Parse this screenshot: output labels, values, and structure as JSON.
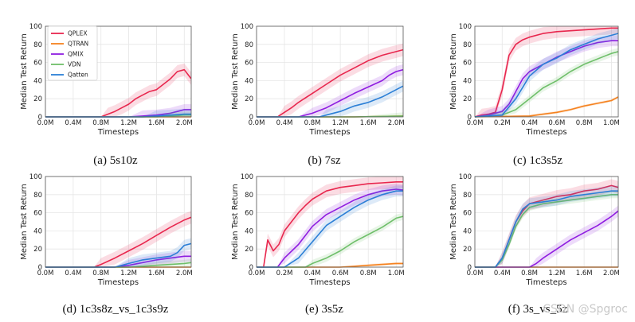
{
  "colors": {
    "QPLEX": "#e8274e",
    "QTRAN": "#f5821f",
    "QMIX": "#8f1de0",
    "VDN": "#6fbf6a",
    "Qatten": "#2b7fd6"
  },
  "legend": [
    "QPLEX",
    "QTRAN",
    "QMIX",
    "VDN",
    "Qatten"
  ],
  "watermark": "CSDN @Spgroc",
  "chart_data": [
    {
      "type": "line",
      "caption": "(a) 5s10z",
      "xlabel": "Timesteps",
      "ylabel": "Median Test Return",
      "xlim": [
        0,
        2.1
      ],
      "ylim": [
        0,
        100
      ],
      "xticks": [
        0,
        0.4,
        0.8,
        1.2,
        1.6,
        2.0
      ],
      "xtick_labels": [
        "0.0M",
        "0.4M",
        "0.8M",
        "1.2M",
        "1.6M",
        "2.0M"
      ],
      "yticks": [
        0,
        20,
        40,
        60,
        80,
        100
      ],
      "series": [
        {
          "name": "QPLEX",
          "x": [
            0,
            0.8,
            0.9,
            1.0,
            1.1,
            1.2,
            1.3,
            1.4,
            1.5,
            1.6,
            1.7,
            1.8,
            1.9,
            2.0,
            2.1
          ],
          "y": [
            0,
            0,
            3,
            6,
            10,
            14,
            20,
            24,
            28,
            30,
            36,
            42,
            50,
            52,
            42
          ]
        },
        {
          "name": "QTRAN",
          "x": [
            0,
            2.1
          ],
          "y": [
            0,
            0
          ]
        },
        {
          "name": "QMIX",
          "x": [
            0,
            1.2,
            1.4,
            1.6,
            1.8,
            1.9,
            2.0,
            2.1
          ],
          "y": [
            0,
            0,
            1,
            2,
            4,
            6,
            8,
            8
          ]
        },
        {
          "name": "VDN",
          "x": [
            0,
            1.6,
            1.8,
            2.0,
            2.1
          ],
          "y": [
            0,
            0,
            1,
            2,
            2
          ]
        },
        {
          "name": "Qatten",
          "x": [
            0,
            1.4,
            1.6,
            1.8,
            2.0,
            2.1
          ],
          "y": [
            0,
            0,
            1,
            2,
            3,
            3
          ]
        }
      ]
    },
    {
      "type": "line",
      "caption": "(b) 7sz",
      "xlabel": "Timesteps",
      "ylabel": "Median Test Return",
      "xlim": [
        0,
        2.1
      ],
      "ylim": [
        0,
        100
      ],
      "xticks": [
        0,
        0.4,
        0.8,
        1.2,
        1.6,
        2.0
      ],
      "xtick_labels": [
        "0.0M",
        "0.4M",
        "0.8M",
        "1.2M",
        "1.6M",
        "2.0M"
      ],
      "yticks": [
        0,
        20,
        40,
        60,
        80,
        100
      ],
      "series": [
        {
          "name": "QPLEX",
          "x": [
            0,
            0.3,
            0.4,
            0.5,
            0.6,
            0.8,
            1.0,
            1.2,
            1.4,
            1.6,
            1.8,
            2.0,
            2.1
          ],
          "y": [
            0,
            0,
            5,
            10,
            16,
            26,
            36,
            46,
            54,
            62,
            68,
            72,
            74
          ]
        },
        {
          "name": "QTRAN",
          "x": [
            0,
            1.4,
            2.1
          ],
          "y": [
            0,
            0,
            1
          ]
        },
        {
          "name": "QMIX",
          "x": [
            0,
            0.6,
            0.8,
            1.0,
            1.2,
            1.4,
            1.6,
            1.8,
            1.9,
            2.0,
            2.1
          ],
          "y": [
            0,
            0,
            4,
            10,
            18,
            26,
            33,
            40,
            46,
            50,
            52
          ]
        },
        {
          "name": "VDN",
          "x": [
            0,
            1.4,
            2.1
          ],
          "y": [
            0,
            0,
            1
          ]
        },
        {
          "name": "Qatten",
          "x": [
            0,
            0.9,
            1.0,
            1.2,
            1.4,
            1.6,
            1.8,
            2.0,
            2.1
          ],
          "y": [
            0,
            0,
            2,
            6,
            12,
            16,
            22,
            30,
            34
          ]
        }
      ]
    },
    {
      "type": "line",
      "caption": "(c) 1c3s5z",
      "xlabel": "Timesteps",
      "ylabel": "Median Test Return",
      "xlim": [
        0,
        1.05
      ],
      "ylim": [
        0,
        100
      ],
      "xticks": [
        0,
        0.2,
        0.4,
        0.6,
        0.8,
        1.0
      ],
      "xtick_labels": [
        "0.0M",
        "0.2M",
        "0.4M",
        "0.6M",
        "0.8M",
        "1.0M"
      ],
      "yticks": [
        0,
        20,
        40,
        60,
        80,
        100
      ],
      "series": [
        {
          "name": "QPLEX",
          "x": [
            0,
            0.05,
            0.1,
            0.15,
            0.2,
            0.25,
            0.3,
            0.35,
            0.4,
            0.5,
            0.6,
            0.7,
            0.8,
            0.9,
            1.0,
            1.05
          ],
          "y": [
            0,
            2,
            3,
            5,
            30,
            68,
            80,
            85,
            88,
            92,
            94,
            95,
            96,
            97,
            98,
            98
          ]
        },
        {
          "name": "QTRAN",
          "x": [
            0,
            0.4,
            0.5,
            0.6,
            0.7,
            0.8,
            0.9,
            1.0,
            1.05
          ],
          "y": [
            0,
            1,
            3,
            5,
            8,
            12,
            15,
            18,
            22
          ]
        },
        {
          "name": "QMIX",
          "x": [
            0,
            0.1,
            0.2,
            0.25,
            0.3,
            0.35,
            0.4,
            0.5,
            0.6,
            0.7,
            0.8,
            0.9,
            1.0,
            1.05
          ],
          "y": [
            0,
            2,
            6,
            14,
            28,
            42,
            50,
            58,
            66,
            72,
            78,
            82,
            84,
            84
          ]
        },
        {
          "name": "VDN",
          "x": [
            0,
            0.2,
            0.3,
            0.4,
            0.5,
            0.6,
            0.7,
            0.8,
            0.9,
            1.0,
            1.05
          ],
          "y": [
            0,
            2,
            8,
            20,
            32,
            40,
            50,
            58,
            64,
            70,
            72
          ]
        },
        {
          "name": "Qatten",
          "x": [
            0,
            0.2,
            0.3,
            0.4,
            0.5,
            0.6,
            0.7,
            0.8,
            0.9,
            1.0,
            1.05
          ],
          "y": [
            0,
            2,
            20,
            45,
            58,
            65,
            74,
            80,
            86,
            90,
            92
          ]
        }
      ]
    },
    {
      "type": "line",
      "caption": "(d) 1c3s8z_vs_1c3s9z",
      "xlabel": "Timesteps",
      "ylabel": "Median Test Return",
      "xlim": [
        0,
        2.1
      ],
      "ylim": [
        0,
        100
      ],
      "xticks": [
        0,
        0.4,
        0.8,
        1.2,
        1.6,
        2.0
      ],
      "xtick_labels": [
        "0.0M",
        "0.4M",
        "0.8M",
        "1.2M",
        "1.6M",
        "2.0M"
      ],
      "yticks": [
        0,
        20,
        40,
        60,
        80,
        100
      ],
      "series": [
        {
          "name": "QPLEX",
          "x": [
            0,
            0.7,
            0.8,
            1.0,
            1.2,
            1.4,
            1.6,
            1.8,
            2.0,
            2.1
          ],
          "y": [
            0,
            0,
            3,
            10,
            18,
            26,
            35,
            44,
            52,
            55
          ]
        },
        {
          "name": "QTRAN",
          "x": [
            0,
            2.1
          ],
          "y": [
            0,
            0
          ]
        },
        {
          "name": "QMIX",
          "x": [
            0,
            1.0,
            1.2,
            1.4,
            1.6,
            1.8,
            2.0,
            2.1
          ],
          "y": [
            0,
            0,
            2,
            5,
            8,
            10,
            12,
            12
          ]
        },
        {
          "name": "VDN",
          "x": [
            0,
            1.2,
            1.6,
            2.0,
            2.1
          ],
          "y": [
            0,
            0,
            2,
            4,
            5
          ]
        },
        {
          "name": "Qatten",
          "x": [
            0,
            1.0,
            1.2,
            1.4,
            1.6,
            1.8,
            1.9,
            2.0,
            2.1
          ],
          "y": [
            0,
            0,
            4,
            8,
            10,
            12,
            16,
            24,
            26
          ]
        }
      ]
    },
    {
      "type": "line",
      "caption": "(e) 3s5z",
      "xlabel": "Timesteps",
      "ylabel": "Median Test Return",
      "xlim": [
        0,
        1.05
      ],
      "ylim": [
        0,
        100
      ],
      "xticks": [
        0,
        0.2,
        0.4,
        0.6,
        0.8,
        1.0
      ],
      "xtick_labels": [
        "0.0M",
        "0.2M",
        "0.4M",
        "0.6M",
        "0.8M",
        "1.0M"
      ],
      "yticks": [
        0,
        20,
        40,
        60,
        80,
        100
      ],
      "series": [
        {
          "name": "QPLEX",
          "x": [
            0,
            0.05,
            0.08,
            0.12,
            0.16,
            0.2,
            0.25,
            0.3,
            0.35,
            0.4,
            0.5,
            0.6,
            0.7,
            0.8,
            0.9,
            1.0,
            1.05
          ],
          "y": [
            0,
            0,
            30,
            18,
            25,
            40,
            50,
            60,
            68,
            75,
            84,
            88,
            90,
            92,
            93,
            94,
            94
          ]
        },
        {
          "name": "QTRAN",
          "x": [
            0,
            0.6,
            0.8,
            0.9,
            1.0,
            1.05
          ],
          "y": [
            0,
            0,
            2,
            3,
            4,
            4
          ]
        },
        {
          "name": "QMIX",
          "x": [
            0,
            0.15,
            0.2,
            0.3,
            0.4,
            0.5,
            0.6,
            0.7,
            0.8,
            0.9,
            1.0,
            1.05
          ],
          "y": [
            0,
            0,
            10,
            25,
            45,
            58,
            66,
            74,
            80,
            84,
            86,
            85
          ]
        },
        {
          "name": "VDN",
          "x": [
            0,
            0.35,
            0.4,
            0.5,
            0.6,
            0.7,
            0.8,
            0.9,
            1.0,
            1.05
          ],
          "y": [
            0,
            0,
            4,
            10,
            18,
            28,
            36,
            44,
            54,
            56
          ]
        },
        {
          "name": "Qatten",
          "x": [
            0,
            0.2,
            0.3,
            0.4,
            0.5,
            0.6,
            0.7,
            0.8,
            0.9,
            1.0,
            1.05
          ],
          "y": [
            0,
            0,
            10,
            28,
            46,
            56,
            66,
            74,
            80,
            84,
            84
          ]
        }
      ]
    },
    {
      "type": "line",
      "caption": "(f) 3s_vs_5z",
      "xlabel": "Timesteps",
      "ylabel": "Median Test Return",
      "xlim": [
        0,
        2.1
      ],
      "ylim": [
        0,
        100
      ],
      "xticks": [
        0,
        0.4,
        0.8,
        1.2,
        1.6,
        2.0
      ],
      "xtick_labels": [
        "0.0M",
        "0.4M",
        "0.8M",
        "1.2M",
        "1.6M",
        "2.0M"
      ],
      "yticks": [
        0,
        20,
        40,
        60,
        80,
        100
      ],
      "series": [
        {
          "name": "QPLEX",
          "x": [
            0,
            0.3,
            0.4,
            0.5,
            0.6,
            0.7,
            0.8,
            1.0,
            1.2,
            1.4,
            1.6,
            1.8,
            2.0,
            2.1
          ],
          "y": [
            0,
            0,
            10,
            30,
            50,
            62,
            70,
            74,
            78,
            80,
            84,
            86,
            90,
            88
          ]
        },
        {
          "name": "QTRAN",
          "x": [
            0,
            2.1
          ],
          "y": [
            0,
            0
          ]
        },
        {
          "name": "QMIX",
          "x": [
            0,
            0.8,
            0.9,
            1.0,
            1.2,
            1.4,
            1.6,
            1.8,
            2.0,
            2.1
          ],
          "y": [
            0,
            0,
            4,
            10,
            20,
            30,
            38,
            46,
            56,
            62
          ]
        },
        {
          "name": "VDN",
          "x": [
            0,
            0.3,
            0.4,
            0.5,
            0.6,
            0.7,
            0.8,
            1.0,
            1.2,
            1.4,
            1.6,
            1.8,
            2.0,
            2.1
          ],
          "y": [
            0,
            0,
            8,
            25,
            45,
            58,
            66,
            70,
            72,
            74,
            76,
            78,
            80,
            80
          ]
        },
        {
          "name": "Qatten",
          "x": [
            0,
            0.3,
            0.4,
            0.5,
            0.6,
            0.7,
            0.8,
            1.0,
            1.2,
            1.4,
            1.6,
            1.8,
            2.0,
            2.1
          ],
          "y": [
            0,
            0,
            10,
            30,
            50,
            64,
            70,
            72,
            74,
            78,
            80,
            82,
            84,
            84
          ]
        }
      ]
    }
  ]
}
